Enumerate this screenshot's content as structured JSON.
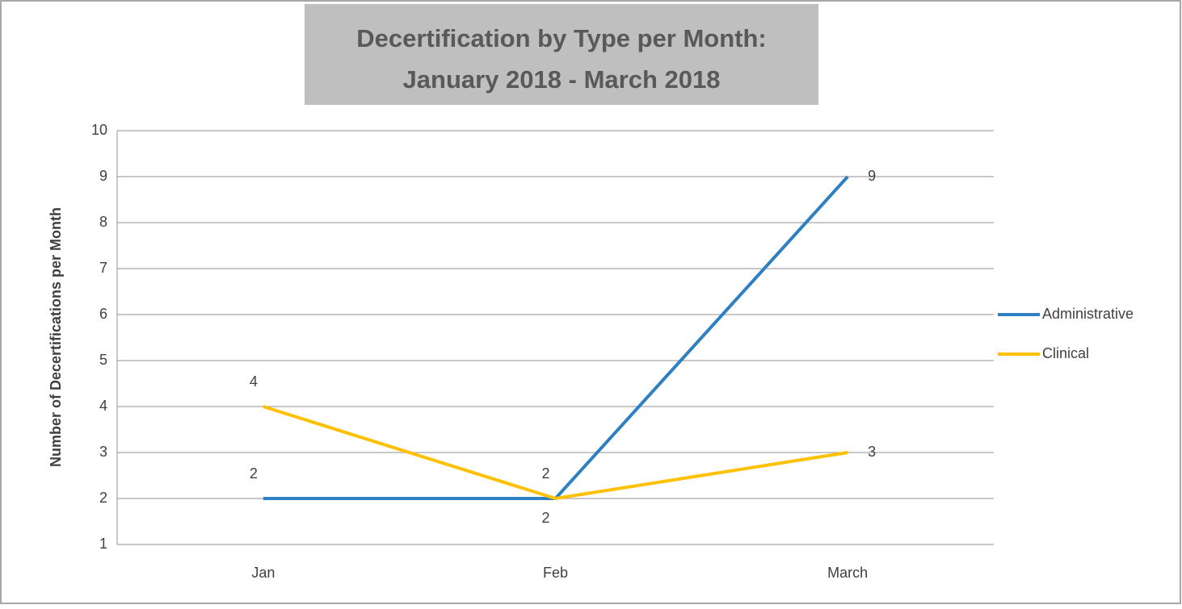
{
  "chart_data": {
    "type": "line",
    "title": [
      "Decertification by Type per Month:",
      "January 2018 - March 2018"
    ],
    "y_label": "Number of Decertifications per Month",
    "categories": [
      "Jan",
      "Feb",
      "March"
    ],
    "series": [
      {
        "name": "Administrative",
        "color": "#2e80c2",
        "values": [
          2,
          2,
          9
        ]
      },
      {
        "name": "Clinical",
        "color": "#ffc000",
        "values": [
          4,
          2,
          3
        ]
      }
    ],
    "ylim": [
      1,
      10
    ],
    "yticks": [
      1,
      2,
      3,
      4,
      5,
      6,
      7,
      8,
      9,
      10
    ],
    "grid": true,
    "legend": "right"
  }
}
